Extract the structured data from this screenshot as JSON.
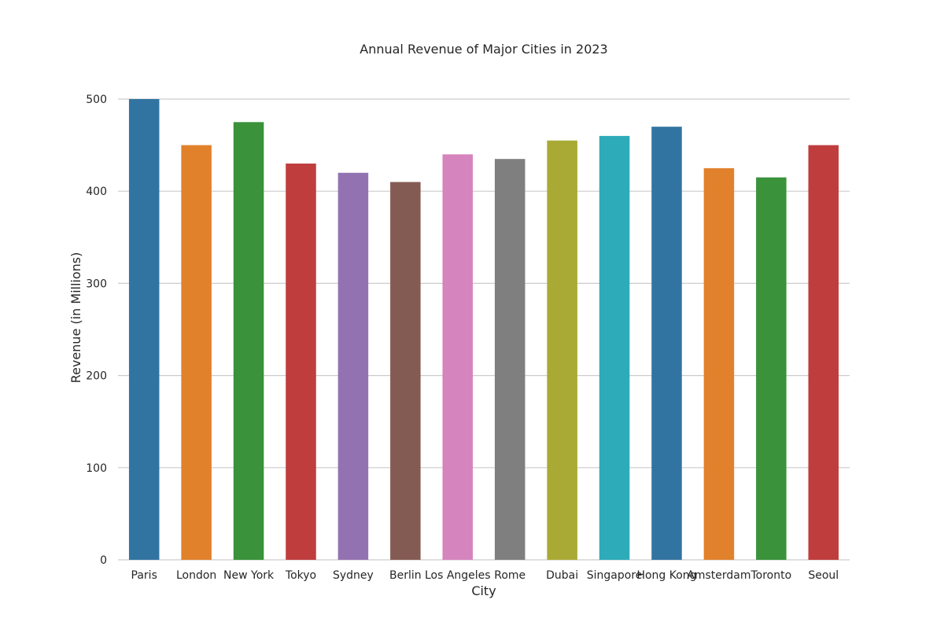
{
  "chart_data": {
    "type": "bar",
    "title": "Annual Revenue of Major Cities in 2023",
    "xlabel": "City",
    "ylabel": "Revenue (in Millions)",
    "categories": [
      "Paris",
      "London",
      "New York",
      "Tokyo",
      "Sydney",
      "Berlin",
      "Los Angeles",
      "Rome",
      "Dubai",
      "Singapore",
      "Hong Kong",
      "Amsterdam",
      "Toronto",
      "Seoul"
    ],
    "values": [
      500,
      450,
      475,
      430,
      420,
      410,
      440,
      435,
      455,
      460,
      470,
      425,
      415,
      450
    ],
    "colors": [
      "#3274a1",
      "#e1812c",
      "#3a923a",
      "#c03d3e",
      "#9372b2",
      "#845b53",
      "#d684bd",
      "#7f7f7f",
      "#a9aa35",
      "#2eabb8",
      "#3274a1",
      "#e1812c",
      "#3a923a",
      "#c03d3e"
    ],
    "yticks": [
      "0",
      "100",
      "200",
      "300",
      "400",
      "500"
    ],
    "ylim": [
      0,
      500
    ],
    "grid": "horizontal",
    "gridColor": "#cccccc",
    "textColor": "#262626"
  }
}
